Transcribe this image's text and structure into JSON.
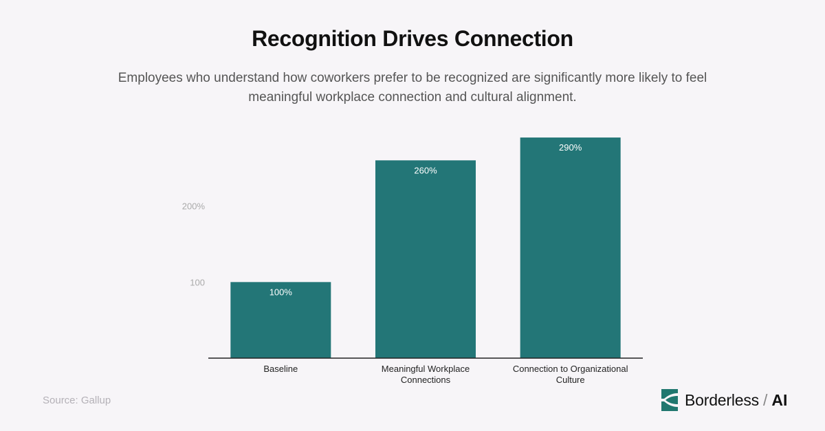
{
  "title": "Recognition Drives Connection",
  "subtitle": "Employees who understand how coworkers prefer to be recognized are significantly more likely to feel meaningful workplace connection and cultural alignment.",
  "source": "Source: Gallup",
  "brand": {
    "name": "Borderless",
    "separator": "/",
    "suffix": "AI",
    "logo_color": "#20776f",
    "logo_icon": "borderless-logo-icon"
  },
  "colors": {
    "bar": "#237677",
    "axis": "#222222",
    "tick": "#aaaaaa",
    "bar_label": "#ffffff"
  },
  "chart_data": {
    "type": "bar",
    "categories": [
      [
        "Baseline"
      ],
      [
        "Meaningful Workplace",
        "Connections"
      ],
      [
        "Connection to Organizational",
        "Culture"
      ]
    ],
    "values": [
      100,
      260,
      290
    ],
    "value_labels": [
      "100%",
      "260%",
      "290%"
    ],
    "yticks": [
      {
        "value": 100,
        "label": "100"
      },
      {
        "value": 200,
        "label": "200%"
      }
    ],
    "ylim": [
      0,
      300
    ],
    "title": "Recognition Drives Connection",
    "xlabel": "",
    "ylabel": "",
    "grid": false
  }
}
